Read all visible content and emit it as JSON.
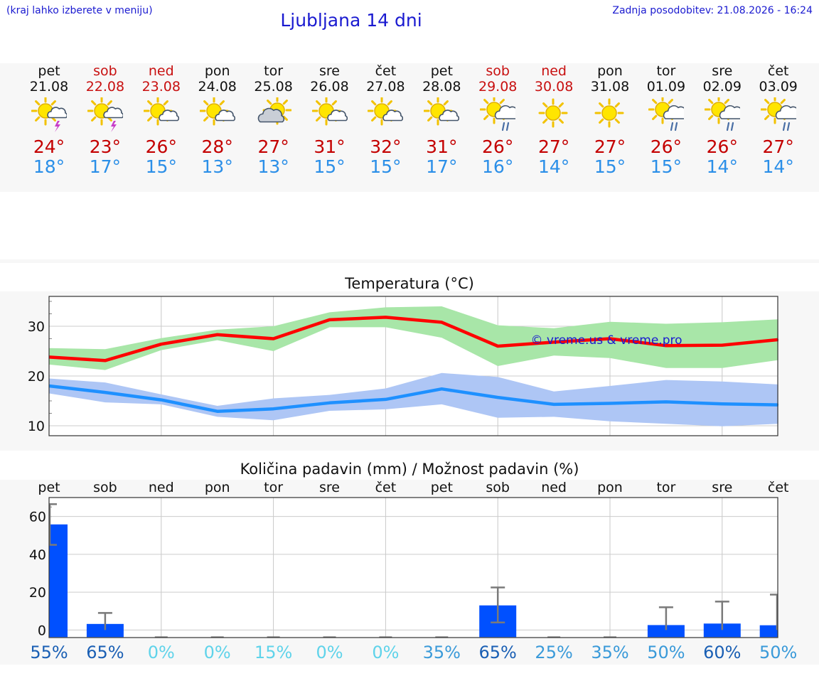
{
  "header": {
    "hint": "(kraj lahko izberete v meniju)",
    "title": "Ljubljana 14 dni",
    "updated": "Zadnja posodobitev: 21.08.2026 - 16:24"
  },
  "days": [
    {
      "name": "pet",
      "date": "21.08",
      "weekend": false,
      "icon": "sun-cloud-thunder-icon",
      "max": "24°",
      "min": "18°"
    },
    {
      "name": "sob",
      "date": "22.08",
      "weekend": true,
      "icon": "sun-cloud-thunder-icon",
      "max": "23°",
      "min": "17°"
    },
    {
      "name": "ned",
      "date": "23.08",
      "weekend": true,
      "icon": "sun-small-cloud-icon",
      "max": "26°",
      "min": "15°"
    },
    {
      "name": "pon",
      "date": "24.08",
      "weekend": false,
      "icon": "sun-small-cloud-icon",
      "max": "28°",
      "min": "13°"
    },
    {
      "name": "tor",
      "date": "25.08",
      "weekend": false,
      "icon": "sun-grey-cloud-icon",
      "max": "27°",
      "min": "13°"
    },
    {
      "name": "sre",
      "date": "26.08",
      "weekend": false,
      "icon": "sun-small-cloud-icon",
      "max": "31°",
      "min": "15°"
    },
    {
      "name": "čet",
      "date": "27.08",
      "weekend": false,
      "icon": "sun-small-cloud-icon",
      "max": "32°",
      "min": "15°"
    },
    {
      "name": "pet",
      "date": "28.08",
      "weekend": false,
      "icon": "sun-small-cloud-icon",
      "max": "31°",
      "min": "17°"
    },
    {
      "name": "sob",
      "date": "29.08",
      "weekend": true,
      "icon": "sun-cloud-rain-icon",
      "max": "26°",
      "min": "16°"
    },
    {
      "name": "ned",
      "date": "30.08",
      "weekend": true,
      "icon": "sun-icon",
      "max": "27°",
      "min": "14°"
    },
    {
      "name": "pon",
      "date": "31.08",
      "weekend": false,
      "icon": "sun-icon",
      "max": "27°",
      "min": "15°"
    },
    {
      "name": "tor",
      "date": "01.09",
      "weekend": false,
      "icon": "sun-cloud-rain-icon",
      "max": "26°",
      "min": "15°"
    },
    {
      "name": "sre",
      "date": "02.09",
      "weekend": false,
      "icon": "sun-cloud-rain-icon",
      "max": "26°",
      "min": "14°"
    },
    {
      "name": "čet",
      "date": "03.09",
      "weekend": false,
      "icon": "sun-cloud-rain-icon",
      "max": "27°",
      "min": "14°"
    }
  ],
  "colors": {
    "max": "#c40000",
    "min": "#2b8fe8",
    "max_line": "#ff0000",
    "max_band": "#a8e6a8",
    "min_line": "#1e90ff",
    "min_band": "#aec6f5",
    "bar": "#0050ff",
    "prob_high": "#1a5fb4",
    "prob_mid": "#3a9ad9",
    "prob_low": "#5fd3ea"
  },
  "chart_data": [
    {
      "type": "line",
      "title": "Temperatura (°C)",
      "watermark": "© vreme.us & vreme.pro",
      "x": [
        0,
        1,
        2,
        3,
        4,
        5,
        6,
        7,
        8,
        9,
        10,
        11,
        12,
        13
      ],
      "ylim": [
        8,
        36
      ],
      "yticks": [
        10,
        20,
        30
      ],
      "grid": true,
      "series": [
        {
          "values": [
            23.8,
            23.1,
            26.4,
            28.3,
            27.5,
            31.3,
            31.8,
            30.8,
            26.0,
            26.8,
            27.5,
            26.1,
            26.2,
            27.3
          ],
          "band_low": [
            22.3,
            21.2,
            25.2,
            27.2,
            25.0,
            29.8,
            29.8,
            27.7,
            22.0,
            24.1,
            23.6,
            21.6,
            21.6,
            23.2
          ],
          "band_high": [
            25.6,
            25.4,
            27.6,
            29.3,
            30.0,
            32.8,
            33.8,
            34.0,
            30.2,
            29.6,
            30.9,
            30.5,
            30.8,
            31.4
          ]
        },
        {
          "values": [
            18.0,
            16.7,
            15.2,
            12.9,
            13.4,
            14.6,
            15.3,
            17.4,
            15.7,
            14.3,
            14.5,
            14.8,
            14.4,
            14.2
          ],
          "band_low": [
            16.5,
            14.7,
            14.3,
            11.8,
            11.1,
            13.0,
            13.3,
            14.3,
            11.6,
            11.8,
            10.9,
            10.4,
            9.9,
            10.4
          ],
          "band_high": [
            19.5,
            18.7,
            16.3,
            14.0,
            15.5,
            16.2,
            17.5,
            20.6,
            19.8,
            16.9,
            18.0,
            19.2,
            18.9,
            18.3
          ]
        }
      ]
    },
    {
      "type": "bar",
      "title": "Količina padavin (mm) / Možnost padavin (%)",
      "categories": [
        "pet",
        "sob",
        "ned",
        "pon",
        "tor",
        "sre",
        "čet",
        "pet",
        "sob",
        "ned",
        "pon",
        "tor",
        "sre",
        "čet"
      ],
      "values": [
        55.8,
        3.2,
        0,
        0,
        0,
        0,
        0,
        0,
        13.0,
        0,
        0,
        2.6,
        3.4,
        2.5
      ],
      "err_low": [
        45.0,
        0,
        0,
        0,
        0,
        0,
        0,
        0,
        4.0,
        0,
        0,
        0,
        0,
        0
      ],
      "err_high": [
        66.5,
        9.0,
        0,
        0.2,
        0.2,
        0.2,
        0.2,
        0.2,
        22.5,
        0.2,
        0.2,
        12.0,
        15.0,
        18.7
      ],
      "ylim": [
        -4,
        70
      ],
      "yticks": [
        0,
        20,
        40,
        60
      ],
      "grid": true,
      "probabilities": [
        "55%",
        "65%",
        "0%",
        "0%",
        "15%",
        "0%",
        "0%",
        "35%",
        "65%",
        "25%",
        "35%",
        "50%",
        "60%",
        "50%"
      ],
      "prob_values": [
        55,
        65,
        0,
        0,
        15,
        0,
        0,
        35,
        65,
        25,
        35,
        50,
        60,
        50
      ]
    }
  ]
}
